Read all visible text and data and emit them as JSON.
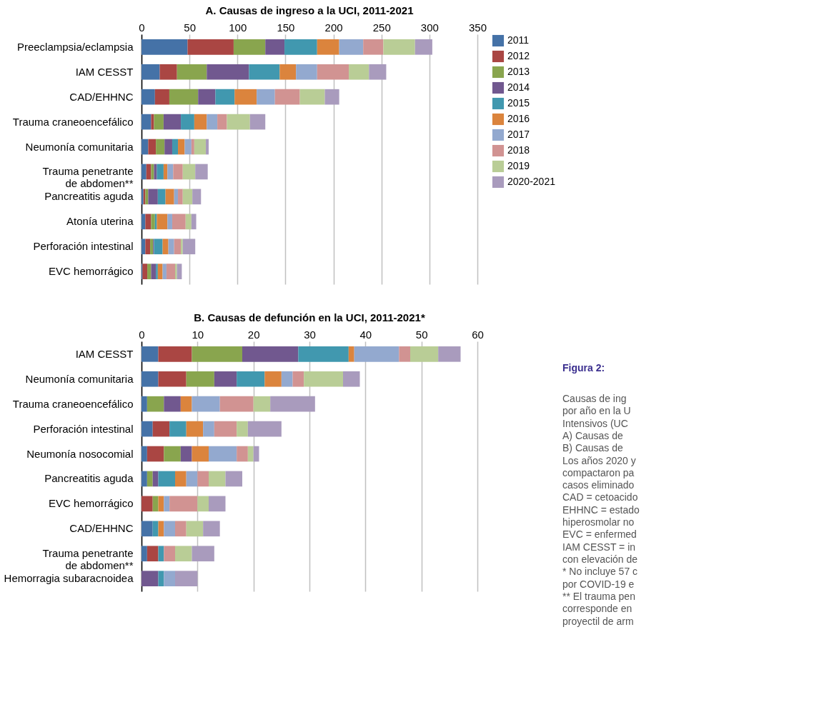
{
  "chart_data": [
    {
      "type": "bar",
      "title": "A. Causas de ingreso a la UCI, 2011-2021",
      "orientation": "horizontal",
      "stacked": true,
      "legend": "right",
      "grid": "x",
      "categories": [
        "Preeclampsia/eclampsia",
        "IAM CESST",
        "CAD/EHHNC",
        "Trauma craneoencefálico",
        "Neumonía comunitaria",
        "Trauma penetrante de abdomen**",
        "Pancreatitis aguda",
        "Atonía uterina",
        "Perforación intestinal",
        "EVC hemorrágico"
      ],
      "xlim": [
        0,
        350
      ],
      "xticks": [
        0,
        50,
        100,
        150,
        200,
        250,
        300,
        350
      ],
      "series": [
        {
          "name": "2011",
          "color": "#4572a7",
          "values": [
            48,
            19,
            14,
            10,
            7,
            5,
            2,
            4,
            4,
            1
          ]
        },
        {
          "name": "2012",
          "color": "#aa4643",
          "values": [
            48,
            18,
            15,
            3,
            8,
            5,
            2,
            6,
            5,
            5
          ]
        },
        {
          "name": "2013",
          "color": "#89a54e",
          "values": [
            33,
            31,
            30,
            10,
            9,
            3,
            3,
            4,
            3,
            4
          ]
        },
        {
          "name": "2014",
          "color": "#71588f",
          "values": [
            20,
            44,
            18,
            18,
            8,
            3,
            10,
            0,
            1,
            5
          ]
        },
        {
          "name": "2015",
          "color": "#4198af",
          "values": [
            34,
            32,
            20,
            14,
            6,
            7,
            8,
            2,
            9,
            2
          ]
        },
        {
          "name": "2016",
          "color": "#db843d",
          "values": [
            23,
            17,
            23,
            13,
            7,
            4,
            9,
            11,
            6,
            5
          ]
        },
        {
          "name": "2017",
          "color": "#93a9cf",
          "values": [
            25,
            22,
            19,
            11,
            7,
            6,
            4,
            5,
            6,
            4
          ]
        },
        {
          "name": "2018",
          "color": "#d19392",
          "values": [
            21,
            33,
            26,
            10,
            3,
            10,
            5,
            14,
            7,
            9
          ]
        },
        {
          "name": "2019",
          "color": "#b9cd96",
          "values": [
            33,
            21,
            26,
            24,
            12,
            13,
            10,
            6,
            2,
            2
          ]
        },
        {
          "name": "2020-2021",
          "color": "#a99bbd",
          "values": [
            18,
            18,
            15,
            16,
            3,
            13,
            9,
            5,
            13,
            5
          ]
        }
      ]
    },
    {
      "type": "bar",
      "title": "B. Causas de defunción en la UCI, 2011-2021*",
      "orientation": "horizontal",
      "stacked": true,
      "grid": "x",
      "categories": [
        "IAM CESST",
        "Neumonía comunitaria",
        "Trauma craneoencefálico",
        "Perforación intestinal",
        "Neumonía nosocomial",
        "Pancreatitis aguda",
        "EVC hemorrágico",
        "CAD/EHHNC",
        "Trauma penetrante de abdomen**",
        "Hemorragia subaracnoidea"
      ],
      "xlim": [
        0,
        60
      ],
      "xticks": [
        0,
        10,
        20,
        30,
        40,
        50,
        60
      ],
      "series": [
        {
          "color": "#4572a7",
          "values": [
            3,
            3,
            1,
            2,
            1,
            1,
            0,
            2,
            1,
            0
          ]
        },
        {
          "color": "#aa4643",
          "values": [
            6,
            5,
            0,
            3,
            3,
            0,
            2,
            0,
            2,
            0
          ]
        },
        {
          "color": "#89a54e",
          "values": [
            9,
            5,
            3,
            0,
            3,
            1,
            1,
            0,
            0,
            0
          ]
        },
        {
          "color": "#71588f",
          "values": [
            10,
            4,
            3,
            0,
            2,
            1,
            0,
            0,
            0,
            3
          ]
        },
        {
          "color": "#4198af",
          "values": [
            9,
            5,
            0,
            3,
            0,
            3,
            0,
            1,
            1,
            1
          ]
        },
        {
          "color": "#db843d",
          "values": [
            1,
            3,
            2,
            3,
            3,
            2,
            1,
            1,
            0,
            0
          ]
        },
        {
          "color": "#93a9cf",
          "values": [
            8,
            2,
            5,
            2,
            5,
            2,
            1,
            2,
            0,
            2
          ]
        },
        {
          "color": "#d19392",
          "values": [
            2,
            2,
            6,
            4,
            2,
            2,
            5,
            2,
            2,
            0
          ]
        },
        {
          "color": "#b9cd96",
          "values": [
            5,
            7,
            3,
            2,
            1,
            3,
            2,
            3,
            3,
            0
          ]
        },
        {
          "color": "#a99bbd",
          "values": [
            4,
            3,
            8,
            6,
            1,
            3,
            3,
            3,
            4,
            4
          ]
        }
      ]
    },
    {
      "type": "other",
      "annotations": [
        "Figura 2:",
        "Causas de ing",
        "por año en la U",
        "Intensivos (UC",
        "A) Causas de",
        "B) Causas de",
        "Los años 2020 y",
        "compactaron pa",
        "casos eliminado",
        "CAD = cetoacido",
        "EHHNC = estado",
        "hiperosmolar no",
        "EVC = enfermed",
        "IAM CESST = in",
        "con elevación de",
        "* No incluye 57 c",
        "por COVID-19 e",
        "** El trauma pen",
        "corresponde en",
        "proyectil de arm"
      ]
    }
  ]
}
